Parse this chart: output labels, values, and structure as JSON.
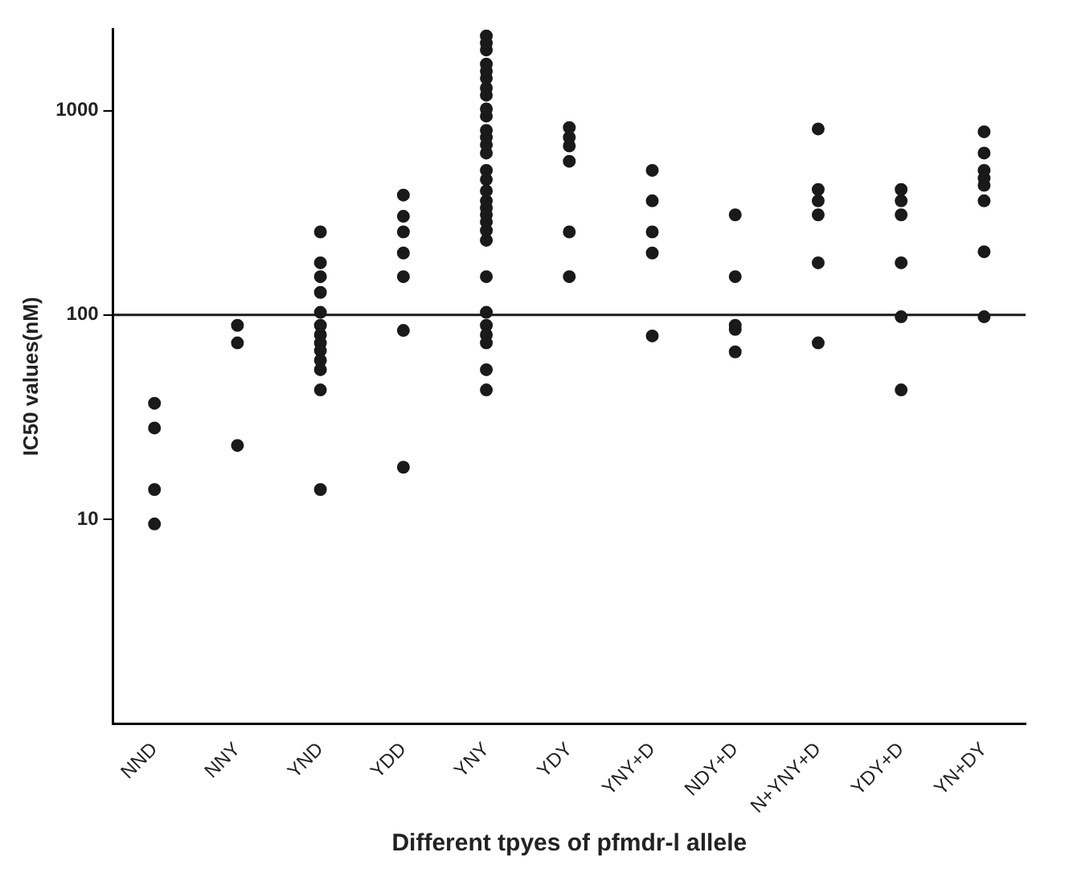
{
  "chart_data": {
    "type": "scatter",
    "xlabel": "Different tpyes of pfmdr-l allele",
    "ylabel": "IC50 values(nM)",
    "categories": [
      "NND",
      "NNY",
      "YND",
      "YDD",
      "YNY",
      "YDY",
      "YNY+D",
      "NDY+D",
      "N+YNY+D",
      "YDY+D",
      "YN+DY"
    ],
    "series": [
      {
        "color": "#1a1a1a",
        "x": [
          "NND",
          "NND",
          "NND",
          "NND",
          "NNY",
          "NNY",
          "NNY",
          "YND",
          "YND",
          "YND",
          "YND",
          "YND",
          "YND",
          "YND",
          "YND",
          "YND",
          "YND",
          "YND",
          "YND",
          "YND",
          "YDD",
          "YDD",
          "YDD",
          "YDD",
          "YDD",
          "YDD",
          "YDD",
          "YNY",
          "YNY",
          "YNY",
          "YNY",
          "YNY",
          "YNY",
          "YNY",
          "YNY",
          "YNY",
          "YNY",
          "YNY",
          "YNY",
          "YNY",
          "YNY",
          "YNY",
          "YNY",
          "YNY",
          "YNY",
          "YNY",
          "YNY",
          "YNY",
          "YNY",
          "YNY",
          "YNY",
          "YNY",
          "YNY",
          "YNY",
          "YNY",
          "YNY",
          "YNY",
          "YDY",
          "YDY",
          "YDY",
          "YDY",
          "YDY",
          "YDY",
          "YNY+D",
          "YNY+D",
          "YNY+D",
          "YNY+D",
          "YNY+D",
          "NDY+D",
          "NDY+D",
          "NDY+D",
          "NDY+D",
          "NDY+D",
          "N+YNY+D",
          "N+YNY+D",
          "N+YNY+D",
          "N+YNY+D",
          "N+YNY+D",
          "N+YNY+D",
          "YDY+D",
          "YDY+D",
          "YDY+D",
          "YDY+D",
          "YDY+D",
          "YDY+D",
          "YN+DY",
          "YN+DY",
          "YN+DY",
          "YN+DY",
          "YN+DY",
          "YN+DY",
          "YN+DY",
          "YN+DY"
        ],
        "values": [
          37,
          28,
          14,
          9.5,
          89,
          73,
          23,
          255,
          180,
          154,
          129,
          103,
          89,
          80,
          73,
          67,
          60,
          54,
          43,
          14,
          386,
          304,
          255,
          201,
          154,
          84,
          18,
          2320,
          2140,
          1980,
          1690,
          1560,
          1440,
          1290,
          1190,
          1020,
          940,
          800,
          740,
          680,
          620,
          510,
          460,
          405,
          362,
          334,
          309,
          285,
          259,
          232,
          154,
          103,
          89,
          80,
          73,
          54,
          43,
          826,
          740,
          672,
          565,
          255,
          154,
          510,
          362,
          255,
          201,
          79,
          309,
          154,
          89,
          85,
          66,
          813,
          411,
          362,
          309,
          180,
          73,
          411,
          362,
          309,
          180,
          98,
          43,
          788,
          620,
          510,
          467,
          431,
          362,
          204,
          98
        ]
      }
    ],
    "log": "y",
    "ylim": [
      1,
      2500
    ],
    "yticks": [
      10,
      100,
      1000
    ],
    "marker": "circle",
    "grid": false,
    "legend": false,
    "ref_lines": [
      {
        "axis": "y",
        "value": 100,
        "color": "#1a1a1a"
      }
    ]
  }
}
